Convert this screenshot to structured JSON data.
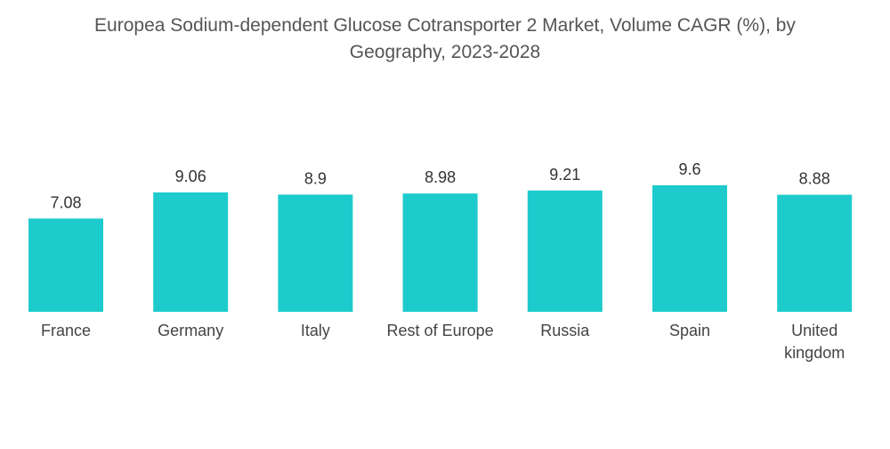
{
  "chart_data": {
    "type": "bar",
    "title_lines": [
      "Europea Sodium-dependent Glucose Cotransporter 2 Market, Volume CAGR (%), by",
      "Geography, 2023-2028"
    ],
    "categories": [
      "France",
      "Germany",
      "Italy",
      "Rest of Europe",
      "Russia",
      "Spain",
      "United kingdom"
    ],
    "category_lines": [
      [
        "France"
      ],
      [
        "Germany"
      ],
      [
        "Italy"
      ],
      [
        "Rest of Europe"
      ],
      [
        "Russia"
      ],
      [
        "Spain"
      ],
      [
        "United",
        "kingdom"
      ]
    ],
    "values": [
      7.08,
      9.06,
      8.9,
      8.98,
      9.21,
      9.6,
      8.88
    ],
    "value_labels": [
      "7.08",
      "9.06",
      "8.9",
      "8.98",
      "9.21",
      "9.6",
      "8.88"
    ],
    "xlabel": "",
    "ylabel": "",
    "grid": false,
    "bar_color": "#1ECBCC"
  }
}
